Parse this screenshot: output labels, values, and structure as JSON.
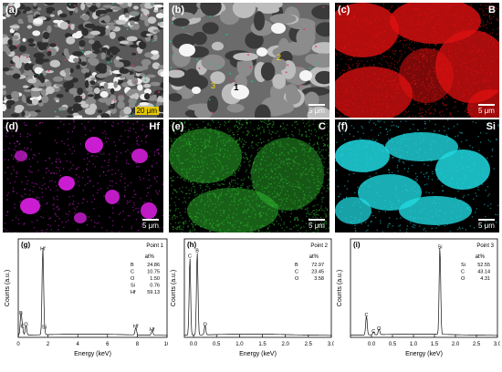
{
  "panels": {
    "a": {
      "label": "(a)",
      "scale_bar": "20 μm"
    },
    "b": {
      "label": "(b)",
      "scale_bar": "5 μm",
      "points": [
        "1",
        "2",
        "3"
      ]
    },
    "c": {
      "label": "(c)",
      "element": "B",
      "scale_bar": "5 μm",
      "color": "#e01010"
    },
    "d": {
      "label": "(d)",
      "element": "Hf",
      "scale_bar": "5 μm",
      "color": "#e020e8"
    },
    "e": {
      "label": "(e)",
      "element": "C",
      "scale_bar": "5 μm",
      "color": "#30c030"
    },
    "f": {
      "label": "(f)",
      "element": "Si",
      "scale_bar": "5 μm",
      "color": "#20d8e0"
    }
  },
  "chart_data": [
    {
      "type": "line",
      "panel": "(g)",
      "title": "Point 1",
      "xlabel": "Energy (keV)",
      "ylabel": "Counts (a.u.)",
      "xlim": [
        0,
        10
      ],
      "xticks": [
        "0",
        "2",
        "4",
        "6",
        "8",
        "10"
      ],
      "table_header": "at%",
      "composition": [
        {
          "element": "B",
          "value": "24.86"
        },
        {
          "element": "C",
          "value": "10.75"
        },
        {
          "element": "O",
          "value": "1.50"
        },
        {
          "element": "Si",
          "value": "0.76"
        },
        {
          "element": "Hf",
          "value": "59.13"
        }
      ],
      "peaks": [
        {
          "label": "B",
          "x": 0.18,
          "y": 0.22
        },
        {
          "label": "O",
          "x": 0.52,
          "y": 0.1
        },
        {
          "label": "C",
          "x": 0.28,
          "y": 0.08
        },
        {
          "label": "Hf",
          "x": 1.65,
          "y": 0.9
        },
        {
          "label": "Si",
          "x": 1.74,
          "y": 0.07
        },
        {
          "label": "Hf",
          "x": 7.9,
          "y": 0.08
        },
        {
          "label": "Hf",
          "x": 9.0,
          "y": 0.05
        }
      ]
    },
    {
      "type": "line",
      "panel": "(h)",
      "title": "Point 2",
      "xlabel": "Energy (keV)",
      "ylabel": "Counts (a.u.)",
      "xlim": [
        -0.2,
        3.0
      ],
      "xticks": [
        "0.0",
        "0.5",
        "1.0",
        "1.5",
        "2.0",
        "2.5",
        "3.0"
      ],
      "table_header": "at%",
      "composition": [
        {
          "element": "B",
          "value": "72.97"
        },
        {
          "element": "C",
          "value": "23.45"
        },
        {
          "element": "O",
          "value": "3.58"
        }
      ],
      "peaks": [
        {
          "label": "C",
          "x": -0.08,
          "y": 0.82
        },
        {
          "label": "B",
          "x": 0.08,
          "y": 0.88
        },
        {
          "label": "O",
          "x": 0.25,
          "y": 0.1
        }
      ]
    },
    {
      "type": "line",
      "panel": "(i)",
      "title": "Point 3",
      "xlabel": "Energy (keV)",
      "ylabel": "Counts (a.u.)",
      "xlim": [
        -0.5,
        3.0
      ],
      "xticks": [
        "0.0",
        "0.5",
        "1.0",
        "1.5",
        "2.0",
        "2.5",
        "3.0"
      ],
      "table_header": "at%",
      "composition": [
        {
          "element": "Si",
          "value": "52.55"
        },
        {
          "element": "C",
          "value": "43.14"
        },
        {
          "element": "O",
          "value": "4.31"
        }
      ],
      "peaks": [
        {
          "label": "C",
          "x": -0.12,
          "y": 0.2
        },
        {
          "label": "C",
          "x": 0.05,
          "y": 0.03
        },
        {
          "label": "O",
          "x": 0.18,
          "y": 0.06
        },
        {
          "label": "Si",
          "x": 1.63,
          "y": 0.92
        }
      ]
    }
  ]
}
